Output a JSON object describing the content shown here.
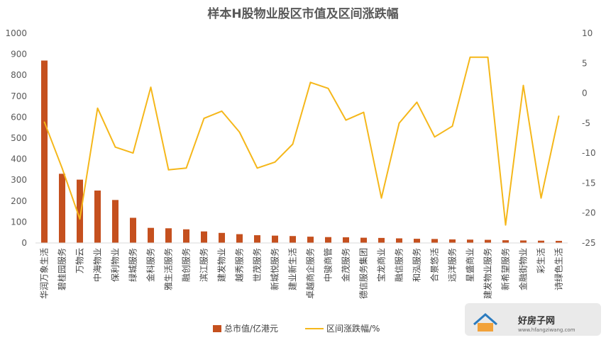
{
  "chart_data": {
    "type": "bar+line",
    "title": "样本H股物业股区市值及区间涨跌幅",
    "categories": [
      "华润万象生活",
      "碧桂园服务",
      "万物云",
      "中海物业",
      "保利物业",
      "绿城服务",
      "金科服务",
      "雅生活服务",
      "融创服务",
      "滨江服务",
      "建发物业",
      "越秀服务",
      "世茂服务",
      "新城悦服务",
      "建业新生活",
      "卓越商企服务",
      "中骏商管",
      "金茂服务",
      "德信服务集团",
      "宝龙商业",
      "融信服务",
      "和泓服务",
      "合景悠活",
      "远洋服务",
      "星盛商业",
      "建发物业服务",
      "新希望服务",
      "金融街物业",
      "彩生活",
      "诗绿色生活"
    ],
    "series": [
      {
        "name": "总市值/亿港元",
        "type": "bar",
        "axis": "left",
        "color": "#C5501E",
        "values": [
          870,
          330,
          302,
          250,
          205,
          120,
          72,
          70,
          65,
          55,
          48,
          42,
          37,
          35,
          33,
          30,
          28,
          27,
          25,
          24,
          22,
          20,
          19,
          17,
          16,
          15,
          13,
          12,
          11,
          10
        ]
      },
      {
        "name": "区间涨跌幅/%",
        "type": "line",
        "axis": "right",
        "color": "#F5B71A",
        "values": [
          -4.8,
          -12.5,
          -21.0,
          -2.5,
          -9.0,
          -10.0,
          1.0,
          -12.8,
          -12.5,
          -4.2,
          -3.0,
          -6.5,
          -12.5,
          -11.5,
          -8.5,
          1.8,
          0.8,
          -4.5,
          -3.2,
          -17.5,
          -5.0,
          -1.5,
          -7.3,
          -5.5,
          6.0,
          6.0,
          -22.0,
          1.3,
          -17.5,
          -3.8
        ]
      }
    ],
    "y_left": {
      "min": 0,
      "max": 1000,
      "ticks": [
        "0",
        "100",
        "200",
        "300",
        "400",
        "500",
        "600",
        "700",
        "800",
        "900",
        "1000"
      ]
    },
    "y_right": {
      "min": -25,
      "max": 10,
      "ticks": [
        "-25",
        "-20",
        "-15",
        "-10",
        "-5",
        "0",
        "5",
        "10"
      ]
    },
    "grid": false,
    "legend_position": "bottom"
  },
  "watermark": {
    "text": "好房子网",
    "url": "www.hfangziwang.com"
  }
}
